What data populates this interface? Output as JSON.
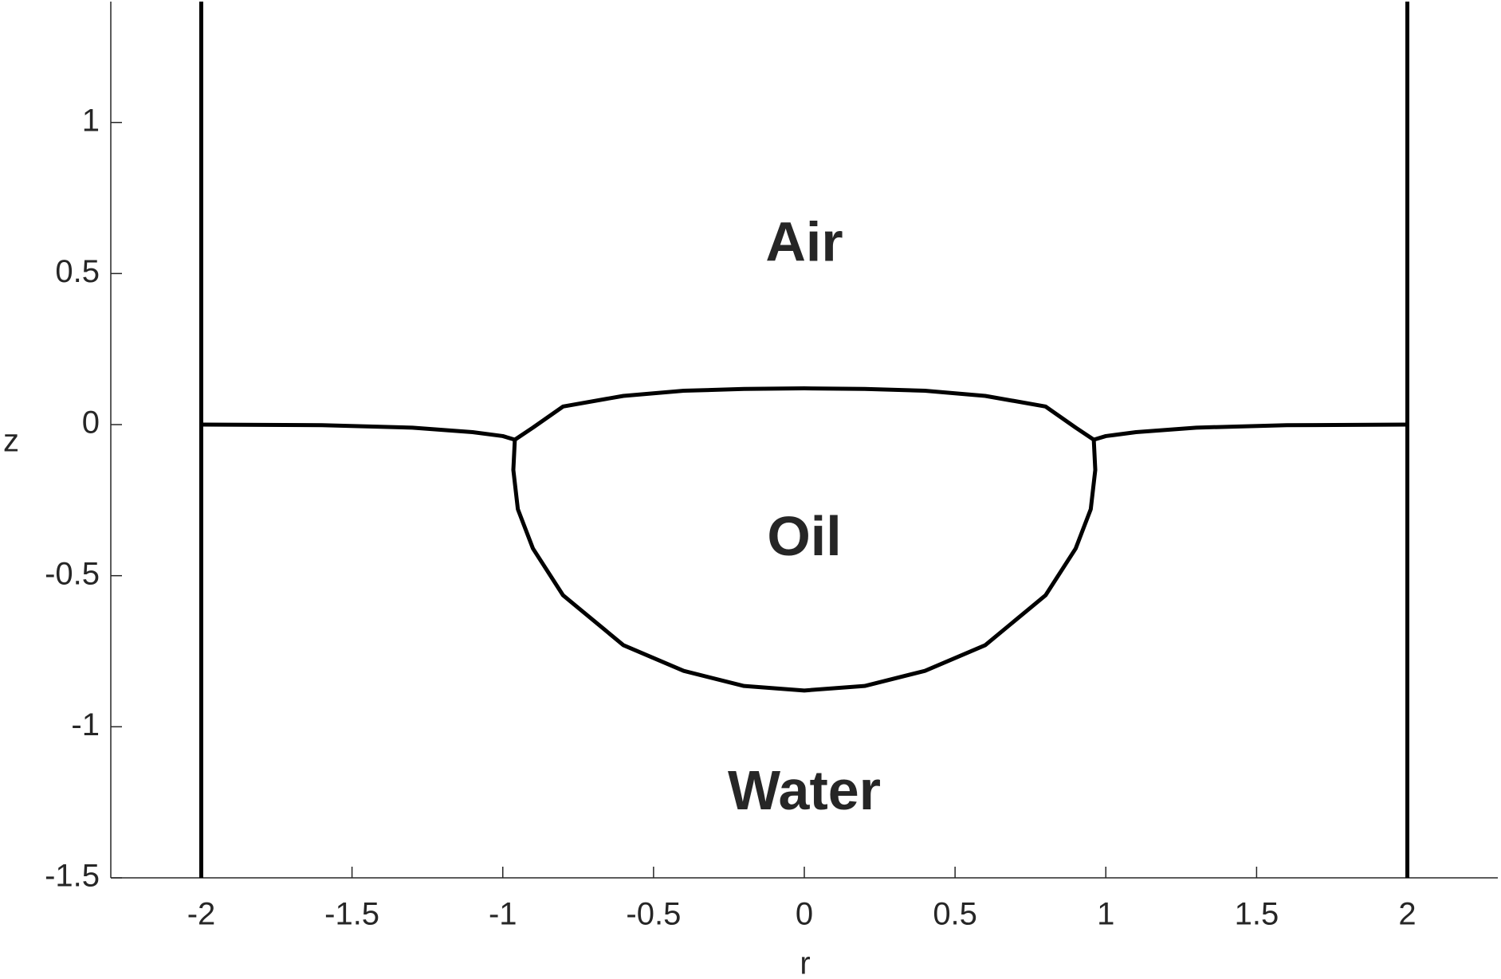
{
  "chart_data": {
    "type": "line",
    "xlabel": "r",
    "ylabel": "z",
    "xlim": [
      -2.3,
      2.3
    ],
    "ylim": [
      -1.5,
      1.4
    ],
    "xticks": [
      -2,
      -1.5,
      -1,
      -0.5,
      0,
      0.5,
      1,
      1.5,
      2
    ],
    "yticks": [
      -1.5,
      -1,
      -0.5,
      0,
      0.5,
      1
    ],
    "series": [
      {
        "color": "#000000",
        "x": [
          -2,
          -2
        ],
        "values": [
          -1.5,
          1.4
        ]
      },
      {
        "color": "#000000",
        "x": [
          2,
          2
        ],
        "values": [
          -1.5,
          1.4
        ]
      },
      {
        "color": "#000000",
        "x": [
          -2,
          -1.6,
          -1.3,
          -1.1,
          -1.0,
          -0.96
        ],
        "values": [
          0,
          -0.002,
          -0.01,
          -0.025,
          -0.038,
          -0.05
        ]
      },
      {
        "color": "#000000",
        "x": [
          0.96,
          1.0,
          1.1,
          1.3,
          1.6,
          2
        ],
        "values": [
          -0.05,
          -0.038,
          -0.025,
          -0.01,
          -0.002,
          0
        ]
      },
      {
        "color": "#000000",
        "x": [
          -0.96,
          -0.9,
          -0.8,
          -0.6,
          -0.4,
          -0.2,
          0,
          0.2,
          0.4,
          0.6,
          0.8,
          0.9,
          0.96
        ],
        "values": [
          -0.05,
          -0.01,
          0.06,
          0.095,
          0.112,
          0.118,
          0.12,
          0.118,
          0.112,
          0.095,
          0.06,
          -0.01,
          -0.05
        ]
      },
      {
        "color": "#000000",
        "x": [
          -0.96,
          -0.965,
          -0.95,
          -0.9,
          -0.8,
          -0.6,
          -0.4,
          -0.2,
          0,
          0.2,
          0.4,
          0.6,
          0.8,
          0.9,
          0.95,
          0.965,
          0.96
        ],
        "values": [
          -0.05,
          -0.15,
          -0.28,
          -0.41,
          -0.565,
          -0.73,
          -0.815,
          -0.865,
          -0.88,
          -0.865,
          -0.815,
          -0.73,
          -0.565,
          -0.41,
          -0.28,
          -0.15,
          -0.05
        ]
      }
    ],
    "annotations": [
      {
        "text": "Air",
        "x": 0,
        "y": 0.59
      },
      {
        "text": "Oil",
        "x": 0,
        "y": -0.384
      },
      {
        "text": "Water",
        "x": 0,
        "y": -1.225
      }
    ]
  }
}
